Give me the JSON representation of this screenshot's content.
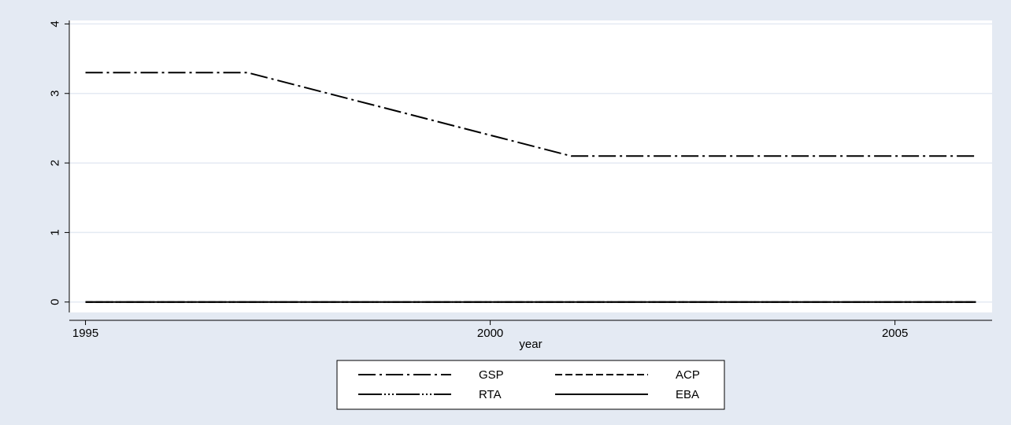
{
  "chart_data": {
    "type": "line",
    "title": "",
    "xlabel": "year",
    "ylabel": "",
    "xlim": [
      1994.8,
      2006.2
    ],
    "ylim": [
      -0.15,
      4.05
    ],
    "x_ticks": [
      1995,
      2000,
      2005
    ],
    "y_ticks": [
      0,
      1,
      2,
      3,
      4
    ],
    "grid": "horizontal",
    "legend_position": "bottom",
    "series": [
      {
        "name": "GSP",
        "style": "dash-dot",
        "points": [
          [
            1995,
            3.3
          ],
          [
            1997,
            3.3
          ],
          [
            2001,
            2.1
          ],
          [
            2006,
            2.1
          ]
        ]
      },
      {
        "name": "ACP",
        "style": "dashed",
        "points": [
          [
            1995,
            0
          ],
          [
            2006,
            0
          ]
        ]
      },
      {
        "name": "RTA",
        "style": "dash-dot-dot",
        "points": [
          [
            1995,
            0
          ],
          [
            2006,
            0
          ]
        ]
      },
      {
        "name": "EBA",
        "style": "solid",
        "points": [
          [
            1995,
            0
          ],
          [
            2006,
            0
          ]
        ]
      }
    ],
    "colors": {
      "outer_background": "#e4eaf3",
      "plot_background": "#ffffff",
      "grid": "#e4eaf3",
      "line": "#000000"
    }
  }
}
